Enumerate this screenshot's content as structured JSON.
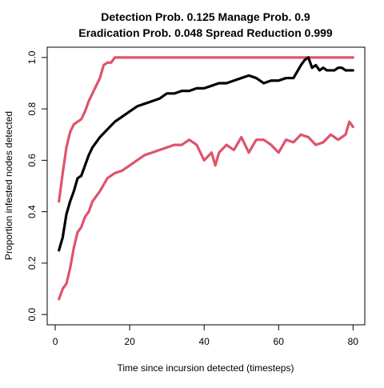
{
  "chart_data": {
    "type": "line",
    "title_lines": [
      "Detection Prob. 0.125 Manage Prob. 0.9",
      "Eradication Prob. 0.048 Spread Reduction 0.999"
    ],
    "xlabel": "Time since incursion detected (timesteps)",
    "ylabel": "Proportion infested nodes detected",
    "xlim": [
      1,
      80
    ],
    "ylim": [
      0,
      1
    ],
    "x_ticks": [
      0,
      20,
      40,
      60,
      80
    ],
    "y_ticks": [
      0.0,
      0.2,
      0.4,
      0.6,
      0.8,
      1.0
    ],
    "x_tick_labels": [
      "0",
      "20",
      "40",
      "60",
      "80"
    ],
    "y_tick_labels": [
      "0.0",
      "0.2",
      "0.4",
      "0.6",
      "0.8",
      "1.0"
    ],
    "grid": false,
    "legend": "none",
    "series": [
      {
        "color": "#DF536B",
        "role": "upper",
        "x": [
          1,
          2,
          3,
          4,
          5,
          6,
          7,
          8,
          9,
          10,
          11,
          12,
          13,
          14,
          15,
          16,
          20,
          30,
          40,
          50,
          60,
          70,
          80
        ],
        "y": [
          0.44,
          0.55,
          0.65,
          0.71,
          0.74,
          0.75,
          0.76,
          0.79,
          0.83,
          0.86,
          0.89,
          0.92,
          0.97,
          0.98,
          0.98,
          1.0,
          1.0,
          1.0,
          1.0,
          1.0,
          1.0,
          1.0,
          1.0
        ]
      },
      {
        "color": "#000000",
        "role": "mean",
        "x": [
          1,
          2,
          3,
          4,
          5,
          6,
          7,
          8,
          9,
          10,
          12,
          14,
          16,
          18,
          20,
          22,
          24,
          26,
          28,
          30,
          32,
          34,
          36,
          38,
          40,
          42,
          44,
          46,
          48,
          50,
          52,
          54,
          56,
          58,
          60,
          62,
          64,
          66,
          67,
          68,
          69,
          70,
          71,
          72,
          73,
          74,
          75,
          76,
          77,
          78,
          79,
          80
        ],
        "y": [
          0.25,
          0.3,
          0.39,
          0.44,
          0.48,
          0.53,
          0.54,
          0.58,
          0.62,
          0.65,
          0.69,
          0.72,
          0.75,
          0.77,
          0.79,
          0.81,
          0.82,
          0.83,
          0.84,
          0.86,
          0.86,
          0.87,
          0.87,
          0.88,
          0.88,
          0.89,
          0.9,
          0.9,
          0.91,
          0.92,
          0.93,
          0.92,
          0.9,
          0.91,
          0.91,
          0.92,
          0.92,
          0.97,
          0.99,
          1.0,
          0.96,
          0.97,
          0.95,
          0.96,
          0.95,
          0.95,
          0.95,
          0.96,
          0.96,
          0.95,
          0.95,
          0.95
        ]
      },
      {
        "color": "#DF536B",
        "role": "lower",
        "x": [
          1,
          2,
          3,
          4,
          5,
          6,
          7,
          8,
          9,
          10,
          12,
          14,
          16,
          18,
          20,
          22,
          24,
          26,
          28,
          30,
          32,
          34,
          36,
          38,
          40,
          42,
          43,
          44,
          46,
          48,
          50,
          52,
          54,
          56,
          58,
          60,
          62,
          64,
          66,
          68,
          70,
          72,
          74,
          76,
          78,
          79,
          80
        ],
        "y": [
          0.06,
          0.1,
          0.12,
          0.18,
          0.26,
          0.32,
          0.34,
          0.38,
          0.4,
          0.44,
          0.48,
          0.53,
          0.55,
          0.56,
          0.58,
          0.6,
          0.62,
          0.63,
          0.64,
          0.65,
          0.66,
          0.66,
          0.68,
          0.66,
          0.6,
          0.63,
          0.58,
          0.63,
          0.66,
          0.64,
          0.69,
          0.63,
          0.68,
          0.68,
          0.66,
          0.63,
          0.68,
          0.67,
          0.7,
          0.69,
          0.66,
          0.67,
          0.7,
          0.68,
          0.7,
          0.75,
          0.73
        ]
      }
    ]
  }
}
